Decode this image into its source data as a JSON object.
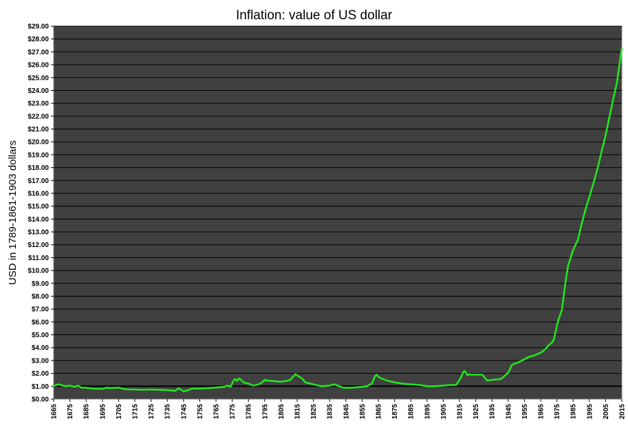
{
  "chart_data": {
    "type": "line",
    "title": "Inflation:  value of US dollar",
    "xlabel": "",
    "ylabel": "USD in 1789-1861-1903 dollars",
    "xlim": [
      1665,
      2015
    ],
    "ylim": [
      0,
      29
    ],
    "ytick_step": 1,
    "ytick_prefix": "$",
    "xtick_step": 10,
    "grid": true,
    "legend": "none",
    "colors": {
      "plot_bg": "#404040",
      "series": "#22e61e",
      "gridline": "#000000",
      "reference_line": "#000000",
      "frame": "#808080"
    },
    "reference_line": {
      "y": 1.0
    },
    "series": [
      {
        "x": [
          1665,
          1668,
          1672,
          1675,
          1678,
          1680,
          1682,
          1685,
          1690,
          1695,
          1698,
          1700,
          1705,
          1708,
          1712,
          1715,
          1720,
          1725,
          1730,
          1735,
          1740,
          1742,
          1745,
          1748,
          1750,
          1755,
          1760,
          1765,
          1770,
          1772,
          1774,
          1776,
          1777,
          1778,
          1779,
          1780,
          1782,
          1785,
          1788,
          1790,
          1793,
          1795,
          1796,
          1800,
          1805,
          1808,
          1811,
          1812,
          1813,
          1814,
          1815,
          1818,
          1820,
          1825,
          1830,
          1835,
          1838,
          1840,
          1843,
          1845,
          1850,
          1855,
          1858,
          1860,
          1861,
          1862,
          1863,
          1864,
          1865,
          1866,
          1870,
          1875,
          1880,
          1885,
          1890,
          1895,
          1900,
          1905,
          1910,
          1913,
          1914,
          1915,
          1916,
          1917,
          1918,
          1919,
          1920,
          1921,
          1922,
          1925,
          1929,
          1930,
          1932,
          1933,
          1935,
          1940,
          1942,
          1944,
          1945,
          1946,
          1947,
          1948,
          1950,
          1952,
          1955,
          1958,
          1960,
          1965,
          1968,
          1970,
          1972,
          1973,
          1974,
          1975,
          1976,
          1978,
          1979,
          1980,
          1981,
          1982,
          1985,
          1988,
          1990,
          1993,
          1995,
          1998,
          2000,
          2003,
          2005,
          2008,
          2010,
          2012,
          2015
        ],
        "values": [
          1.02,
          1.15,
          1.0,
          1.05,
          0.95,
          1.05,
          0.9,
          0.88,
          0.8,
          0.8,
          0.9,
          0.85,
          0.9,
          0.78,
          0.75,
          0.75,
          0.72,
          0.75,
          0.72,
          0.7,
          0.65,
          0.85,
          0.6,
          0.7,
          0.82,
          0.82,
          0.85,
          0.9,
          0.95,
          1.05,
          0.95,
          1.5,
          1.55,
          1.4,
          1.6,
          1.55,
          1.3,
          1.2,
          1.05,
          1.1,
          1.25,
          1.5,
          1.45,
          1.4,
          1.35,
          1.4,
          1.5,
          1.7,
          1.8,
          1.95,
          1.85,
          1.6,
          1.3,
          1.15,
          1.0,
          1.05,
          1.15,
          1.05,
          0.9,
          0.88,
          0.9,
          0.95,
          1.0,
          1.15,
          1.2,
          1.5,
          1.8,
          1.9,
          1.75,
          1.65,
          1.45,
          1.3,
          1.2,
          1.15,
          1.1,
          1.0,
          1.0,
          1.05,
          1.1,
          1.1,
          1.3,
          1.5,
          1.7,
          2.0,
          2.2,
          2.05,
          1.85,
          1.95,
          1.9,
          1.9,
          1.9,
          1.75,
          1.45,
          1.45,
          1.5,
          1.55,
          1.7,
          1.95,
          2.05,
          2.3,
          2.6,
          2.7,
          2.8,
          2.9,
          3.1,
          3.3,
          3.35,
          3.6,
          3.9,
          4.2,
          4.4,
          4.6,
          5.1,
          5.7,
          6.2,
          6.9,
          7.8,
          8.8,
          9.7,
          10.4,
          11.6,
          12.4,
          13.5,
          14.9,
          15.7,
          17.0,
          17.9,
          19.5,
          20.5,
          22.3,
          23.5,
          24.6,
          27.3
        ]
      }
    ]
  }
}
